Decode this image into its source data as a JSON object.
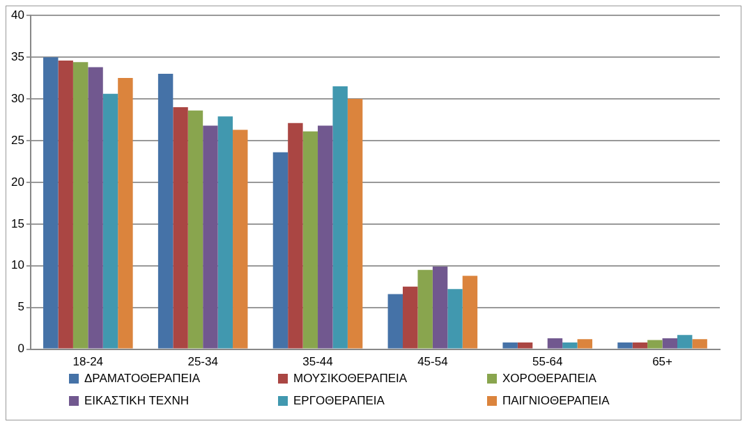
{
  "chart_data": {
    "type": "bar",
    "categories": [
      "18-24",
      "25-34",
      "35-44",
      "45-54",
      "55-64",
      "65+"
    ],
    "series": [
      {
        "name": "ΔΡΑΜΑΤΟΘΕΡΑΠΕΙΑ",
        "color": "#4572a7",
        "values": [
          35,
          33,
          23.6,
          6.6,
          0.8,
          0.8
        ]
      },
      {
        "name": "ΜΟΥΣΙΚΟΘΕΡΑΠΕΙΑ",
        "color": "#aa4643",
        "values": [
          34.6,
          29,
          27.1,
          7.5,
          0.8,
          0.8
        ]
      },
      {
        "name": "ΧΟΡΟΘΕΡΑΠΕΙΑ",
        "color": "#89a54e",
        "values": [
          34.4,
          28.6,
          26.1,
          9.5,
          0,
          1.1
        ]
      },
      {
        "name": "ΕΙΚΑΣΤΙΚΗ ΤΕΧΝΗ",
        "color": "#71588f",
        "values": [
          33.8,
          26.8,
          26.8,
          9.9,
          1.3,
          1.3
        ]
      },
      {
        "name": "ΕΡΓΟΘΕΡΑΠΕΙΑ",
        "color": "#4198af",
        "values": [
          30.6,
          27.9,
          31.5,
          7.2,
          0.8,
          1.7
        ]
      },
      {
        "name": "ΠΑΙΓΝΙΟΘΕΡΑΠΕΙΑ",
        "color": "#db843d",
        "values": [
          32.5,
          26.3,
          30,
          8.8,
          1.2,
          1.2
        ]
      }
    ],
    "ylim": [
      0,
      40
    ],
    "yticks": [
      0,
      5,
      10,
      15,
      20,
      25,
      30,
      35,
      40
    ],
    "grid": "y",
    "legend": "bottom"
  }
}
